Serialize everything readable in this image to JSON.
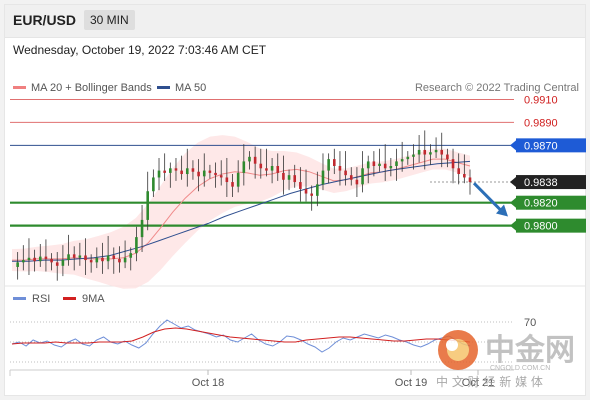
{
  "header": {
    "symbol": "EUR/USD",
    "timeframe": "30 MIN"
  },
  "timestamp": "Wednesday, October 19, 2022 7:03:46 AM CET",
  "legend": [
    {
      "label": "MA 20 + Bollinger Bands",
      "color": "#f08080"
    },
    {
      "label": "MA 50",
      "color": "#2f4f8f"
    }
  ],
  "credit": "Research © 2022 Trading Central",
  "rsi_legend": [
    {
      "label": "RSI",
      "color": "#6f8fd8"
    },
    {
      "label": "9MA",
      "color": "#d22020"
    }
  ],
  "colors": {
    "support": "#2e8b2e",
    "resistance": "#e07070",
    "pivot": "#2f4f8f",
    "current": "#222222",
    "bull": "#2f8a2f",
    "bear": "#c0282f"
  },
  "watermark": {
    "text": "中金网",
    "sub": "CNGOLD.COM.CN",
    "slogan": "中 文 财 经 新 媒 体"
  },
  "chart_data": {
    "type": "candlestick",
    "title": "EUR/USD",
    "ylim": [
      0.975,
      0.992
    ],
    "levels": [
      {
        "label": "0.9910",
        "value": 0.991,
        "kind": "resistance"
      },
      {
        "label": "0.9890",
        "value": 0.989,
        "kind": "resistance"
      },
      {
        "label": "0.9870",
        "value": 0.987,
        "kind": "pivot"
      },
      {
        "label": "0.9838",
        "value": 0.9838,
        "kind": "current"
      },
      {
        "label": "0.9820",
        "value": 0.982,
        "kind": "support"
      },
      {
        "label": "0.9800",
        "value": 0.98,
        "kind": "support"
      }
    ],
    "x_ticks": [
      "Oct 18",
      "Oct 19",
      "Oct 21"
    ],
    "price_path": [
      0.9764,
      0.9768,
      0.977,
      0.9772,
      0.9769,
      0.9773,
      0.9771,
      0.9768,
      0.9765,
      0.977,
      0.9775,
      0.9772,
      0.9774,
      0.977,
      0.9768,
      0.9772,
      0.9769,
      0.9774,
      0.9771,
      0.9768,
      0.9772,
      0.9776,
      0.979,
      0.9805,
      0.983,
      0.9842,
      0.9848,
      0.9846,
      0.985,
      0.9848,
      0.9845,
      0.985,
      0.9847,
      0.9843,
      0.9848,
      0.9846,
      0.9844,
      0.9842,
      0.9838,
      0.9834,
      0.9846,
      0.9856,
      0.986,
      0.9854,
      0.985,
      0.9848,
      0.9852,
      0.9846,
      0.984,
      0.9844,
      0.9838,
      0.9832,
      0.9828,
      0.9826,
      0.9836,
      0.9848,
      0.9858,
      0.9852,
      0.9848,
      0.9844,
      0.984,
      0.9836,
      0.985,
      0.9856,
      0.9852,
      0.9854,
      0.985,
      0.9852,
      0.9856,
      0.9858,
      0.986,
      0.9862,
      0.9866,
      0.9862,
      0.9864,
      0.9866,
      0.9862,
      0.9858,
      0.985,
      0.9845,
      0.9842,
      0.9838
    ],
    "ma20": [
      0.977,
      0.977,
      0.9771,
      0.9771,
      0.9771,
      0.9772,
      0.9771,
      0.9771,
      0.9771,
      0.9772,
      0.9776,
      0.9785,
      0.9798,
      0.9812,
      0.9824,
      0.9834,
      0.9841,
      0.9845,
      0.9847,
      0.9846,
      0.9844,
      0.9845,
      0.9848,
      0.9849,
      0.9847,
      0.9843,
      0.9839,
      0.984,
      0.9843,
      0.9846,
      0.9847,
      0.9849,
      0.9852,
      0.9855,
      0.9858,
      0.9858,
      0.9855,
      0.9852
    ],
    "ma50": [
      0.9769,
      0.9769,
      0.977,
      0.977,
      0.9771,
      0.9772,
      0.9774,
      0.9778,
      0.9782,
      0.9787,
      0.9792,
      0.9797,
      0.9802,
      0.9808,
      0.9813,
      0.9818,
      0.9823,
      0.9828,
      0.9832,
      0.9836,
      0.9839,
      0.9842,
      0.9845,
      0.9848,
      0.985,
      0.9852,
      0.9854,
      0.9855,
      0.9856
    ],
    "rsi_levels": [
      {
        "label": "70",
        "value": 70
      }
    ],
    "rsi": [
      48,
      50,
      46,
      52,
      49,
      51,
      47,
      45,
      50,
      53,
      48,
      46,
      52,
      55,
      50,
      48,
      51,
      47,
      44,
      49,
      58,
      66,
      72,
      68,
      64,
      66,
      62,
      60,
      58,
      55,
      57,
      52,
      50,
      54,
      58,
      52,
      48,
      46,
      50,
      56,
      55,
      52,
      48,
      45,
      40,
      44,
      50,
      54,
      52,
      55,
      58,
      56,
      54,
      57,
      55,
      52,
      50,
      47,
      45,
      48,
      52,
      54,
      56,
      52,
      48,
      46
    ],
    "rsi_ma": [
      48,
      49,
      49,
      49,
      50,
      49,
      49,
      49,
      50,
      50,
      50,
      51,
      55,
      60,
      63,
      64,
      63,
      61,
      59,
      57,
      55,
      54,
      53,
      52,
      51,
      50,
      50,
      52,
      53,
      54,
      55,
      55,
      54,
      53,
      52,
      51,
      51,
      52,
      53,
      53,
      52,
      51,
      50
    ]
  }
}
